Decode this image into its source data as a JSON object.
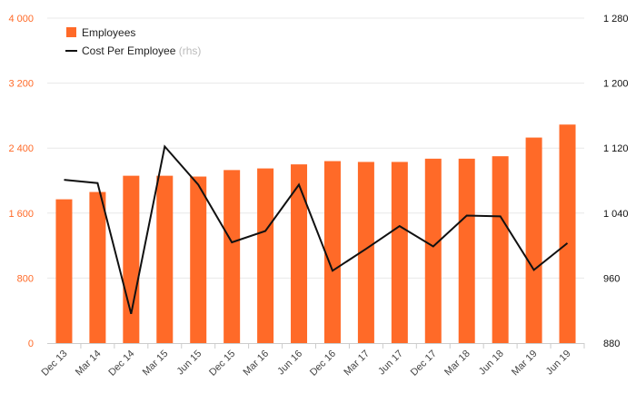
{
  "chart_data": {
    "type": "bar",
    "categories": [
      "Dec 13",
      "Mar 14",
      "Dec 14",
      "Mar 15",
      "Jun 15",
      "Dec 15",
      "Mar 16",
      "Jun 16",
      "Dec 16",
      "Mar 17",
      "Jun 17",
      "Dec 17",
      "Mar 18",
      "Jun 18",
      "Mar 19",
      "Jun 19"
    ],
    "series": [
      {
        "name": "Employees",
        "type": "bar",
        "axis": "left",
        "color": "#ff6a28",
        "values": [
          1770,
          1860,
          2060,
          2060,
          2050,
          2130,
          2150,
          2200,
          2240,
          2230,
          2230,
          2270,
          2270,
          2300,
          2530,
          2690
        ]
      },
      {
        "name": "Cost Per Employee",
        "type": "line",
        "axis": "right",
        "color": "#111111",
        "values": [
          1081,
          1077,
          916,
          1122,
          1075,
          1004,
          1018,
          1075,
          969,
          996,
          1024,
          999,
          1037,
          1036,
          970,
          1003
        ]
      }
    ],
    "legend": {
      "position": "top-left",
      "items": [
        {
          "label": "Employees",
          "suffix": "",
          "marker": "square",
          "color": "#ff6a28"
        },
        {
          "label": "Cost Per Employee",
          "suffix": "(rhs)",
          "marker": "line",
          "color": "#111111"
        }
      ]
    },
    "y_left": {
      "ylim": [
        0,
        4000
      ],
      "ticks": [
        0,
        800,
        1600,
        2400,
        3200,
        4000
      ],
      "tick_labels": [
        "0",
        "800",
        "1 600",
        "2 400",
        "3 200",
        "4 000"
      ],
      "tick_color": "#ff6a28"
    },
    "y_right": {
      "ylim": [
        880,
        1280
      ],
      "ticks": [
        880,
        960,
        1040,
        1120,
        1200,
        1280
      ],
      "tick_labels": [
        "880",
        "960",
        "1 040",
        "1 120",
        "1 200",
        "1 280"
      ],
      "tick_color": "#111111"
    },
    "grid": true,
    "title": "",
    "xlabel": "",
    "ylabel": ""
  }
}
